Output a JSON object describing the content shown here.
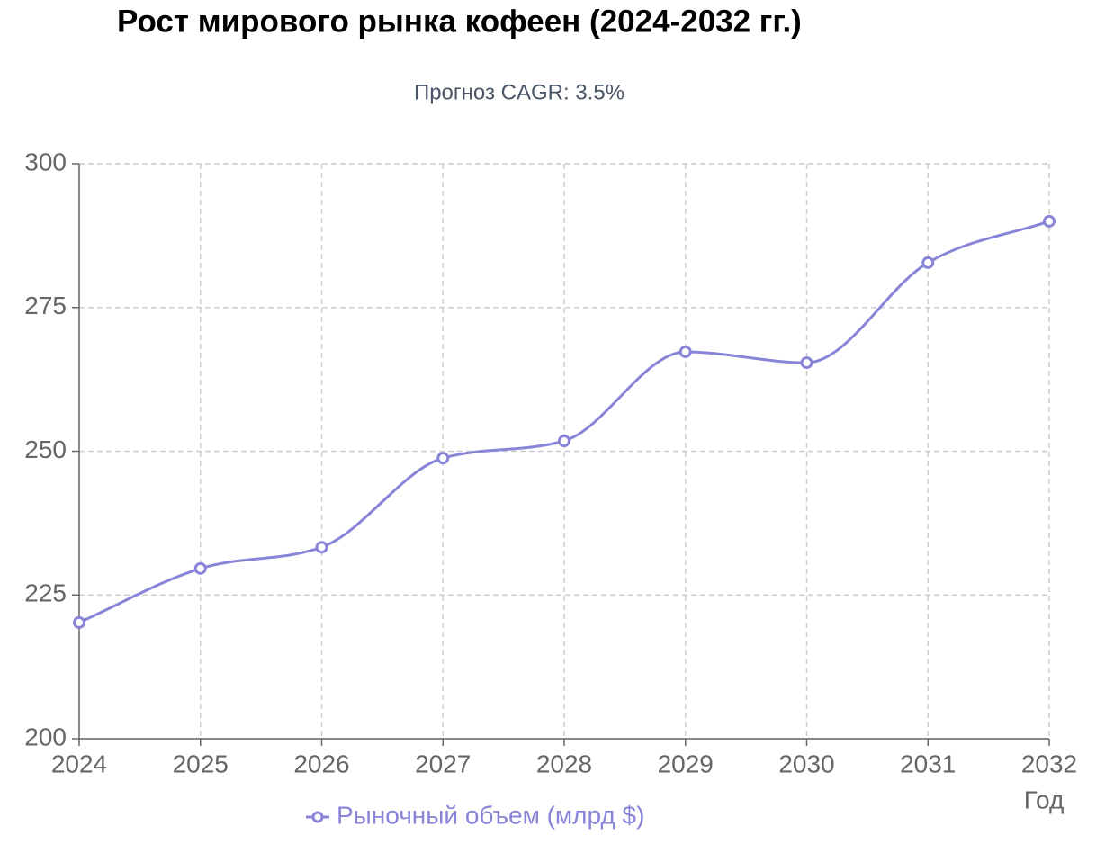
{
  "chart_data": {
    "type": "line",
    "title": "Рост мирового рынка кофеен (2024-2032 гг.)",
    "subtitle": "Прогноз CAGR: 3.5%",
    "x_label": "Год",
    "x": [
      2024,
      2025,
      2026,
      2027,
      2028,
      2029,
      2030,
      2031,
      2032
    ],
    "series": [
      {
        "name": "Рыночный объем (млрд $)",
        "color": "#8884d8",
        "values": [
          220.2,
          229.6,
          233.3,
          248.8,
          251.8,
          267.3,
          265.4,
          282.8,
          290.0
        ]
      }
    ],
    "xlim": [
      2024,
      2032
    ],
    "xticks": [
      2024,
      2025,
      2026,
      2027,
      2028,
      2029,
      2030,
      2031,
      2032
    ],
    "ylim": [
      200,
      300
    ],
    "yticks": [
      200,
      225,
      250,
      275,
      300
    ],
    "grid": true
  }
}
